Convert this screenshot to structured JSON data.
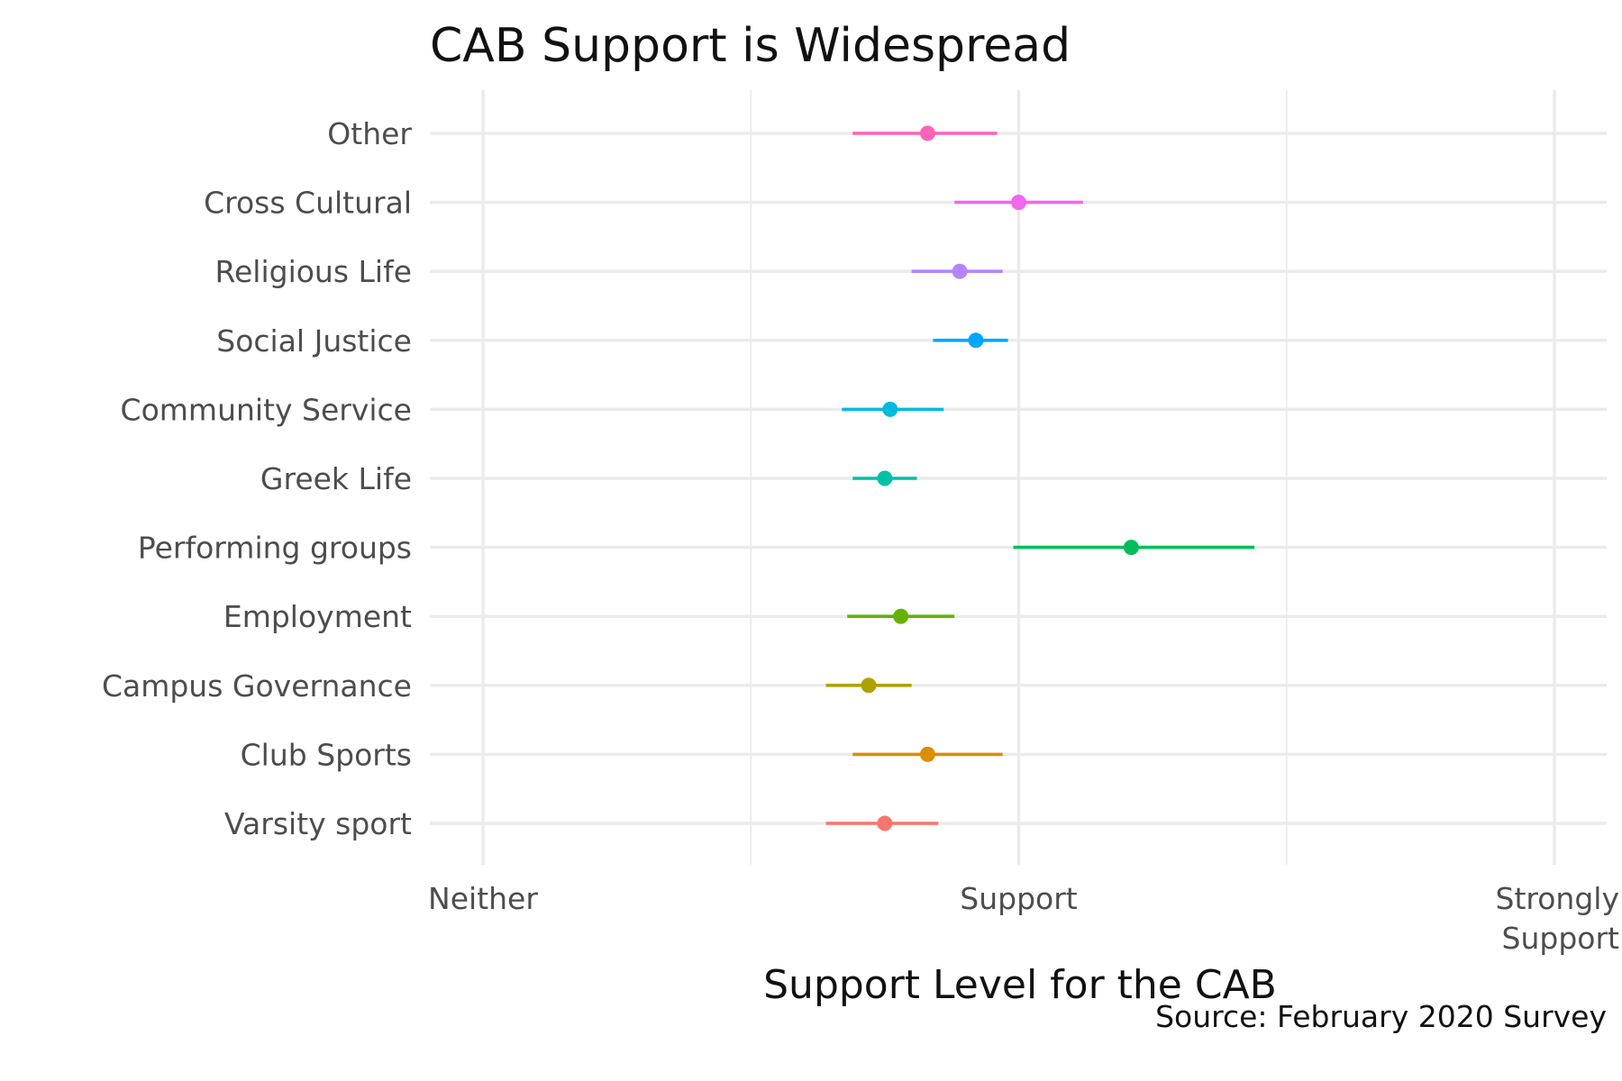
{
  "chart_data": {
    "type": "errorbar-dot",
    "title": "CAB Support is Widespread",
    "xlabel": "Support Level for the CAB",
    "ylabel": "",
    "caption": "Source: February 2020 Survey",
    "xlim": [
      3,
      5
    ],
    "x_ticks": [
      {
        "value": 3,
        "lines": [
          "Neither"
        ]
      },
      {
        "value": 4,
        "lines": [
          "Support"
        ]
      },
      {
        "value": 5,
        "lines": [
          "Strongly",
          "Support"
        ]
      }
    ],
    "grid": true,
    "legend": "none",
    "categories": [
      "Varsity sport",
      "Club Sports",
      "Campus Governance",
      "Employment",
      "Performing groups",
      "Greek Life",
      "Community Service",
      "Social Justice",
      "Religious Life",
      "Cross Cultural",
      "Other"
    ],
    "series": [
      {
        "category": "Varsity sport",
        "value": 3.75,
        "low": 3.64,
        "high": 3.85,
        "color": "#F8766D"
      },
      {
        "category": "Club Sports",
        "value": 3.83,
        "low": 3.69,
        "high": 3.97,
        "color": "#DB8E00"
      },
      {
        "category": "Campus Governance",
        "value": 3.72,
        "low": 3.64,
        "high": 3.8,
        "color": "#AEA200"
      },
      {
        "category": "Employment",
        "value": 3.78,
        "low": 3.68,
        "high": 3.88,
        "color": "#64B200"
      },
      {
        "category": "Performing groups",
        "value": 4.21,
        "low": 3.99,
        "high": 4.44,
        "color": "#00BD5C"
      },
      {
        "category": "Greek Life",
        "value": 3.75,
        "low": 3.69,
        "high": 3.81,
        "color": "#00C1A7"
      },
      {
        "category": "Community Service",
        "value": 3.76,
        "low": 3.67,
        "high": 3.86,
        "color": "#00BADE"
      },
      {
        "category": "Social Justice",
        "value": 3.92,
        "low": 3.84,
        "high": 3.98,
        "color": "#00A6FF"
      },
      {
        "category": "Religious Life",
        "value": 3.89,
        "low": 3.8,
        "high": 3.97,
        "color": "#B385FF"
      },
      {
        "category": "Cross Cultural",
        "value": 4.0,
        "low": 3.88,
        "high": 4.12,
        "color": "#EF67EB"
      },
      {
        "category": "Other",
        "value": 3.83,
        "low": 3.69,
        "high": 3.96,
        "color": "#FF63B6"
      }
    ]
  }
}
